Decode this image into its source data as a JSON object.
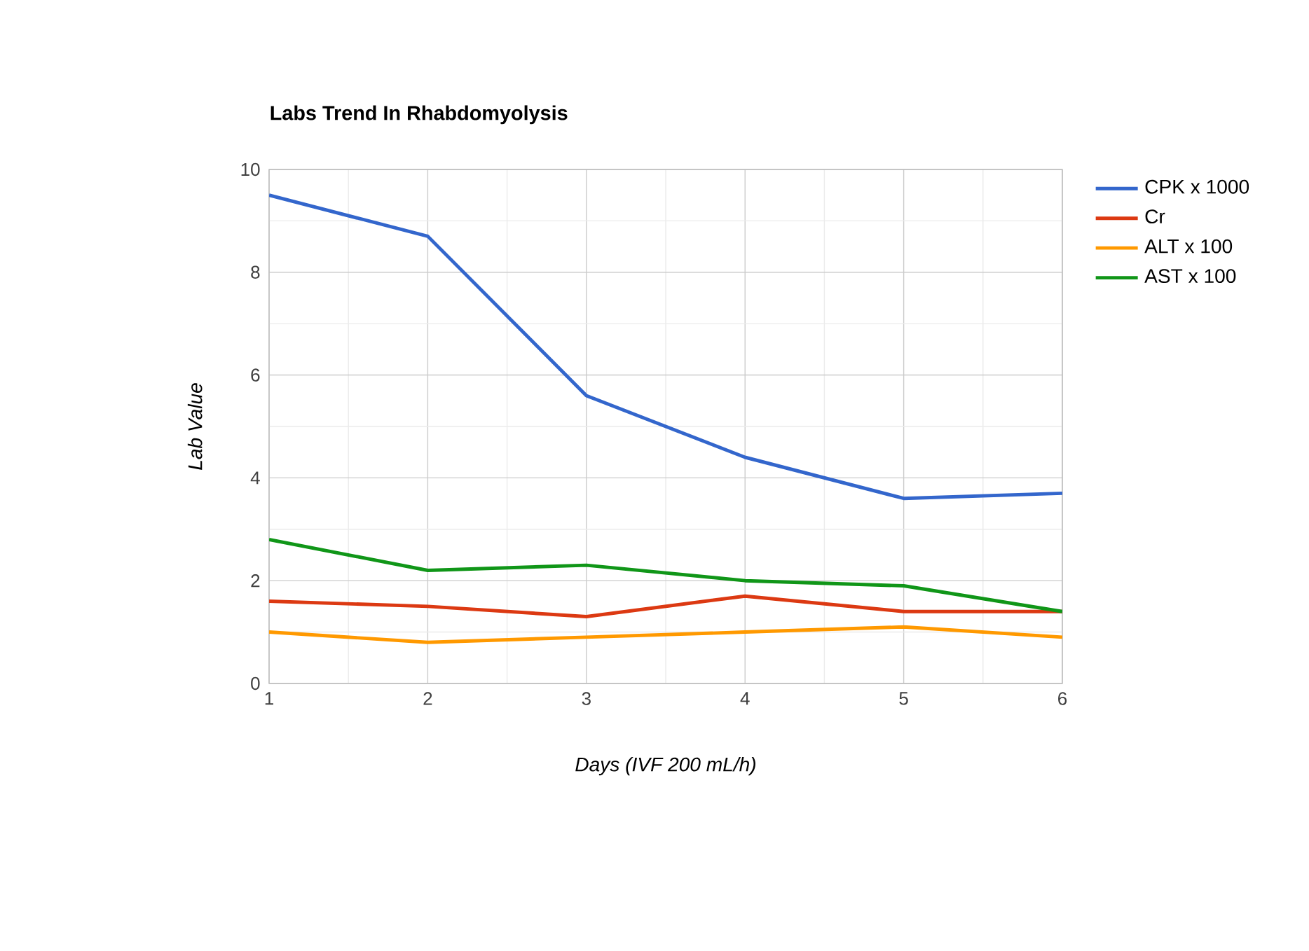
{
  "chart_data": {
    "type": "line",
    "title": "Labs Trend In Rhabdomyolysis",
    "xlabel": "Days (IVF 200 mL/h)",
    "ylabel": "Lab Value",
    "x": [
      1,
      2,
      3,
      4,
      5,
      6
    ],
    "series": [
      {
        "name": "CPK x 1000",
        "color": "#3366cc",
        "values": [
          9.5,
          8.7,
          5.6,
          4.4,
          3.6,
          3.7
        ]
      },
      {
        "name": "Cr",
        "color": "#dc3912",
        "values": [
          1.6,
          1.5,
          1.3,
          1.7,
          1.4,
          1.4
        ]
      },
      {
        "name": "ALT x 100",
        "color": "#ff9900",
        "values": [
          1.0,
          0.8,
          0.9,
          1.0,
          1.1,
          0.9
        ]
      },
      {
        "name": "AST x 100",
        "color": "#109618",
        "values": [
          2.8,
          2.2,
          2.3,
          2.0,
          1.9,
          1.4
        ]
      }
    ],
    "xlim": [
      1,
      6
    ],
    "ylim": [
      0,
      10
    ],
    "xticks": [
      1,
      2,
      3,
      4,
      5,
      6
    ],
    "yticks": [
      0,
      2,
      4,
      6,
      8,
      10
    ],
    "grid": true,
    "legend": "right",
    "marker": "none",
    "line_style": "solid"
  }
}
